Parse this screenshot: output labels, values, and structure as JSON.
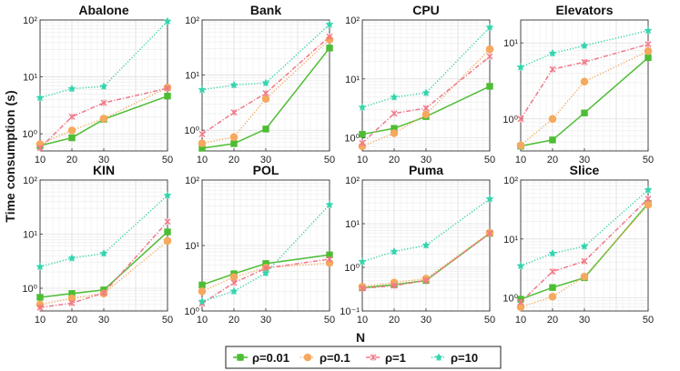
{
  "figure": {
    "ylabel": "Time consumption (s)",
    "xlabel": "N"
  },
  "legend": {
    "placement": "bottom-center",
    "entries": [
      {
        "label": "ρ=0.01",
        "color": "#4dbd33",
        "marker": "square",
        "line": "solid"
      },
      {
        "label": "ρ=0.1",
        "color": "#f5a95f",
        "marker": "circle",
        "line": "dotted"
      },
      {
        "label": "ρ=1",
        "color": "#f07888",
        "marker": "x",
        "line": "dashdot"
      },
      {
        "label": "ρ=10",
        "color": "#35d4ad",
        "marker": "star",
        "line": "dotted"
      }
    ]
  },
  "chart_data": [
    {
      "type": "line",
      "title": "Abalone",
      "x": [
        10,
        20,
        30,
        50
      ],
      "yscale": "log",
      "ylim": [
        0.5,
        100
      ],
      "yticks": [
        1,
        10,
        100
      ],
      "series": [
        {
          "name": "ρ=0.01",
          "values": [
            0.62,
            0.85,
            1.8,
            4.6
          ]
        },
        {
          "name": "ρ=0.1",
          "values": [
            0.66,
            1.15,
            1.85,
            6.5
          ]
        },
        {
          "name": "ρ=1",
          "values": [
            0.56,
            2.0,
            3.5,
            6.3
          ]
        },
        {
          "name": "ρ=10",
          "values": [
            4.3,
            6.2,
            6.8,
            95
          ]
        }
      ]
    },
    {
      "type": "line",
      "title": "Bank",
      "x": [
        10,
        20,
        30,
        50
      ],
      "yscale": "log",
      "ylim": [
        0.42,
        100
      ],
      "yticks": [
        1,
        10,
        100
      ],
      "series": [
        {
          "name": "ρ=0.01",
          "values": [
            0.47,
            0.57,
            1.05,
            31
          ]
        },
        {
          "name": "ρ=0.1",
          "values": [
            0.58,
            0.75,
            3.7,
            44
          ]
        },
        {
          "name": "ρ=1",
          "values": [
            0.85,
            2.1,
            4.7,
            50
          ]
        },
        {
          "name": "ρ=10",
          "values": [
            5.4,
            6.6,
            7.2,
            83
          ]
        }
      ]
    },
    {
      "type": "line",
      "title": "CPU",
      "x": [
        10,
        20,
        30,
        50
      ],
      "yscale": "log",
      "ylim": [
        0.6,
        100
      ],
      "yticks": [
        1,
        10,
        100
      ],
      "series": [
        {
          "name": "ρ=0.01",
          "values": [
            1.15,
            1.45,
            2.3,
            7.5
          ]
        },
        {
          "name": "ρ=0.1",
          "values": [
            0.72,
            1.2,
            2.5,
            32
          ]
        },
        {
          "name": "ρ=1",
          "values": [
            0.82,
            2.6,
            3.2,
            24
          ]
        },
        {
          "name": "ρ=10",
          "values": [
            3.3,
            4.9,
            5.8,
            75
          ]
        }
      ]
    },
    {
      "type": "line",
      "title": "Elevators",
      "x": [
        10,
        20,
        30,
        50
      ],
      "yscale": "log",
      "ylim": [
        0.38,
        20
      ],
      "yticks": [
        1,
        10
      ],
      "series": [
        {
          "name": "ρ=0.01",
          "values": [
            0.44,
            0.53,
            1.2,
            6.4
          ]
        },
        {
          "name": "ρ=0.1",
          "values": [
            0.45,
            1.0,
            3.1,
            7.8
          ]
        },
        {
          "name": "ρ=1",
          "values": [
            1.0,
            4.5,
            5.6,
            9.6
          ]
        },
        {
          "name": "ρ=10",
          "values": [
            4.8,
            7.3,
            9.2,
            14.5
          ]
        }
      ]
    },
    {
      "type": "line",
      "title": "KIN",
      "x": [
        10,
        20,
        30,
        50
      ],
      "yscale": "log",
      "ylim": [
        0.38,
        100
      ],
      "yticks": [
        1,
        10,
        100
      ],
      "series": [
        {
          "name": "ρ=0.01",
          "values": [
            0.68,
            0.8,
            0.93,
            11
          ]
        },
        {
          "name": "ρ=0.1",
          "values": [
            0.5,
            0.65,
            0.8,
            7.5
          ]
        },
        {
          "name": "ρ=1",
          "values": [
            0.44,
            0.53,
            0.82,
            17
          ]
        },
        {
          "name": "ρ=10",
          "values": [
            2.5,
            3.6,
            4.4,
            52
          ]
        }
      ]
    },
    {
      "type": "line",
      "title": "POL",
      "x": [
        10,
        20,
        30,
        50
      ],
      "yscale": "log",
      "ylim": [
        1,
        100
      ],
      "yticks": [
        1,
        10,
        100
      ],
      "series": [
        {
          "name": "ρ=0.01",
          "values": [
            2.5,
            3.7,
            5.3,
            7.2
          ]
        },
        {
          "name": "ρ=0.1",
          "values": [
            2.0,
            3.3,
            4.6,
            5.4
          ]
        },
        {
          "name": "ρ=1",
          "values": [
            1.3,
            2.7,
            4.5,
            6.2
          ]
        },
        {
          "name": "ρ=10",
          "values": [
            1.4,
            2.0,
            3.8,
            42
          ]
        }
      ]
    },
    {
      "type": "line",
      "title": "Puma",
      "x": [
        10,
        20,
        30,
        50
      ],
      "yscale": "log",
      "ylim": [
        0.1,
        100
      ],
      "yticks": [
        0.1,
        1,
        10,
        100
      ],
      "series": [
        {
          "name": "ρ=0.01",
          "values": [
            0.34,
            0.4,
            0.5,
            6.0
          ]
        },
        {
          "name": "ρ=0.1",
          "values": [
            0.36,
            0.45,
            0.55,
            6.2
          ]
        },
        {
          "name": "ρ=1",
          "values": [
            0.33,
            0.38,
            0.5,
            6.0
          ]
        },
        {
          "name": "ρ=10",
          "values": [
            1.35,
            2.3,
            3.2,
            37
          ]
        }
      ]
    },
    {
      "type": "line",
      "title": "Slice",
      "x": [
        10,
        20,
        30,
        50
      ],
      "yscale": "log",
      "ylim": [
        0.6,
        100
      ],
      "yticks": [
        1,
        10,
        100
      ],
      "series": [
        {
          "name": "ρ=0.01",
          "values": [
            0.95,
            1.5,
            2.2,
            40
          ]
        },
        {
          "name": "ρ=0.1",
          "values": [
            0.7,
            1.05,
            2.3,
            38
          ]
        },
        {
          "name": "ρ=1",
          "values": [
            0.85,
            2.8,
            4.2,
            48
          ]
        },
        {
          "name": "ρ=10",
          "values": [
            3.5,
            5.7,
            7.5,
            68
          ]
        }
      ]
    }
  ]
}
